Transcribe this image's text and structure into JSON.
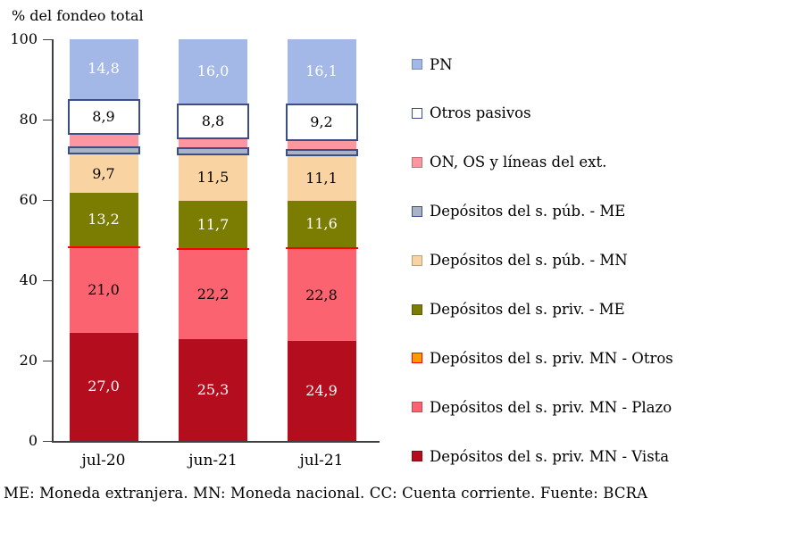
{
  "title": "% del fondeo total",
  "footnote": "ME: Moneda extranjera. MN: Moneda nacional. CC: Cuenta corriente. Fuente: BCRA",
  "colors": {
    "axis": "#3f3f3f",
    "background": "#ffffff",
    "navy_border": "#3d4e87",
    "red_border": "#ff0000"
  },
  "chart_data": {
    "type": "bar",
    "stacked": true,
    "title": "% del fondeo total",
    "xlabel": "",
    "ylabel": "% del fondeo total",
    "categories": [
      "jul-20",
      "jun-21",
      "jul-21"
    ],
    "ylim": [
      0,
      100
    ],
    "yticks": [
      0,
      20,
      40,
      60,
      80,
      100
    ],
    "grid": false,
    "legend_position": "right",
    "label_format": "decimal-comma",
    "series": [
      {
        "name": "Depósitos del s. priv. MN - Vista",
        "color": "#b30d1e",
        "border": null,
        "label_color": "#ffffff",
        "show_labels": true,
        "values": [
          27.0,
          25.3,
          24.9
        ]
      },
      {
        "name": "Depósitos del s. priv. MN - Plazo",
        "color": "#fb6371",
        "border": null,
        "label_color": "#000000",
        "show_labels": true,
        "values": [
          21.0,
          22.2,
          22.8
        ]
      },
      {
        "name": "Depósitos del s. priv. MN - Otros",
        "color": "#ff9900",
        "border": "#ff0000",
        "label_color": "#000000",
        "show_labels": false,
        "values": [
          0.5,
          0.5,
          0.5
        ]
      },
      {
        "name": "Depósitos del s. priv. - ME",
        "color": "#7a7d01",
        "border": null,
        "label_color": "#ffffff",
        "show_labels": true,
        "values": [
          13.2,
          11.7,
          11.6
        ]
      },
      {
        "name": "Depósitos del s. púb. - MN",
        "color": "#fad3a3",
        "border": null,
        "label_color": "#000000",
        "show_labels": true,
        "values": [
          9.7,
          11.5,
          11.1
        ]
      },
      {
        "name": "Depósitos del s. púb. - ME",
        "color": "#a9b3c6",
        "border": "#3d4e87",
        "label_color": "#000000",
        "show_labels": false,
        "values": [
          1.9,
          2.0,
          1.8
        ]
      },
      {
        "name": "ON, OS y líneas del ext.",
        "color": "#fc97a1",
        "border": null,
        "label_color": "#000000",
        "show_labels": false,
        "values": [
          3.0,
          2.0,
          2.0
        ]
      },
      {
        "name": "Otros pasivos",
        "color": "#ffffff",
        "border": "#3d4e87",
        "label_color": "#000000",
        "show_labels": true,
        "values": [
          8.9,
          8.8,
          9.2
        ]
      },
      {
        "name": "PN",
        "color": "#a4b8e8",
        "border": null,
        "label_color": "#ffffff",
        "show_labels": true,
        "values": [
          14.8,
          16.0,
          16.1
        ]
      }
    ]
  }
}
